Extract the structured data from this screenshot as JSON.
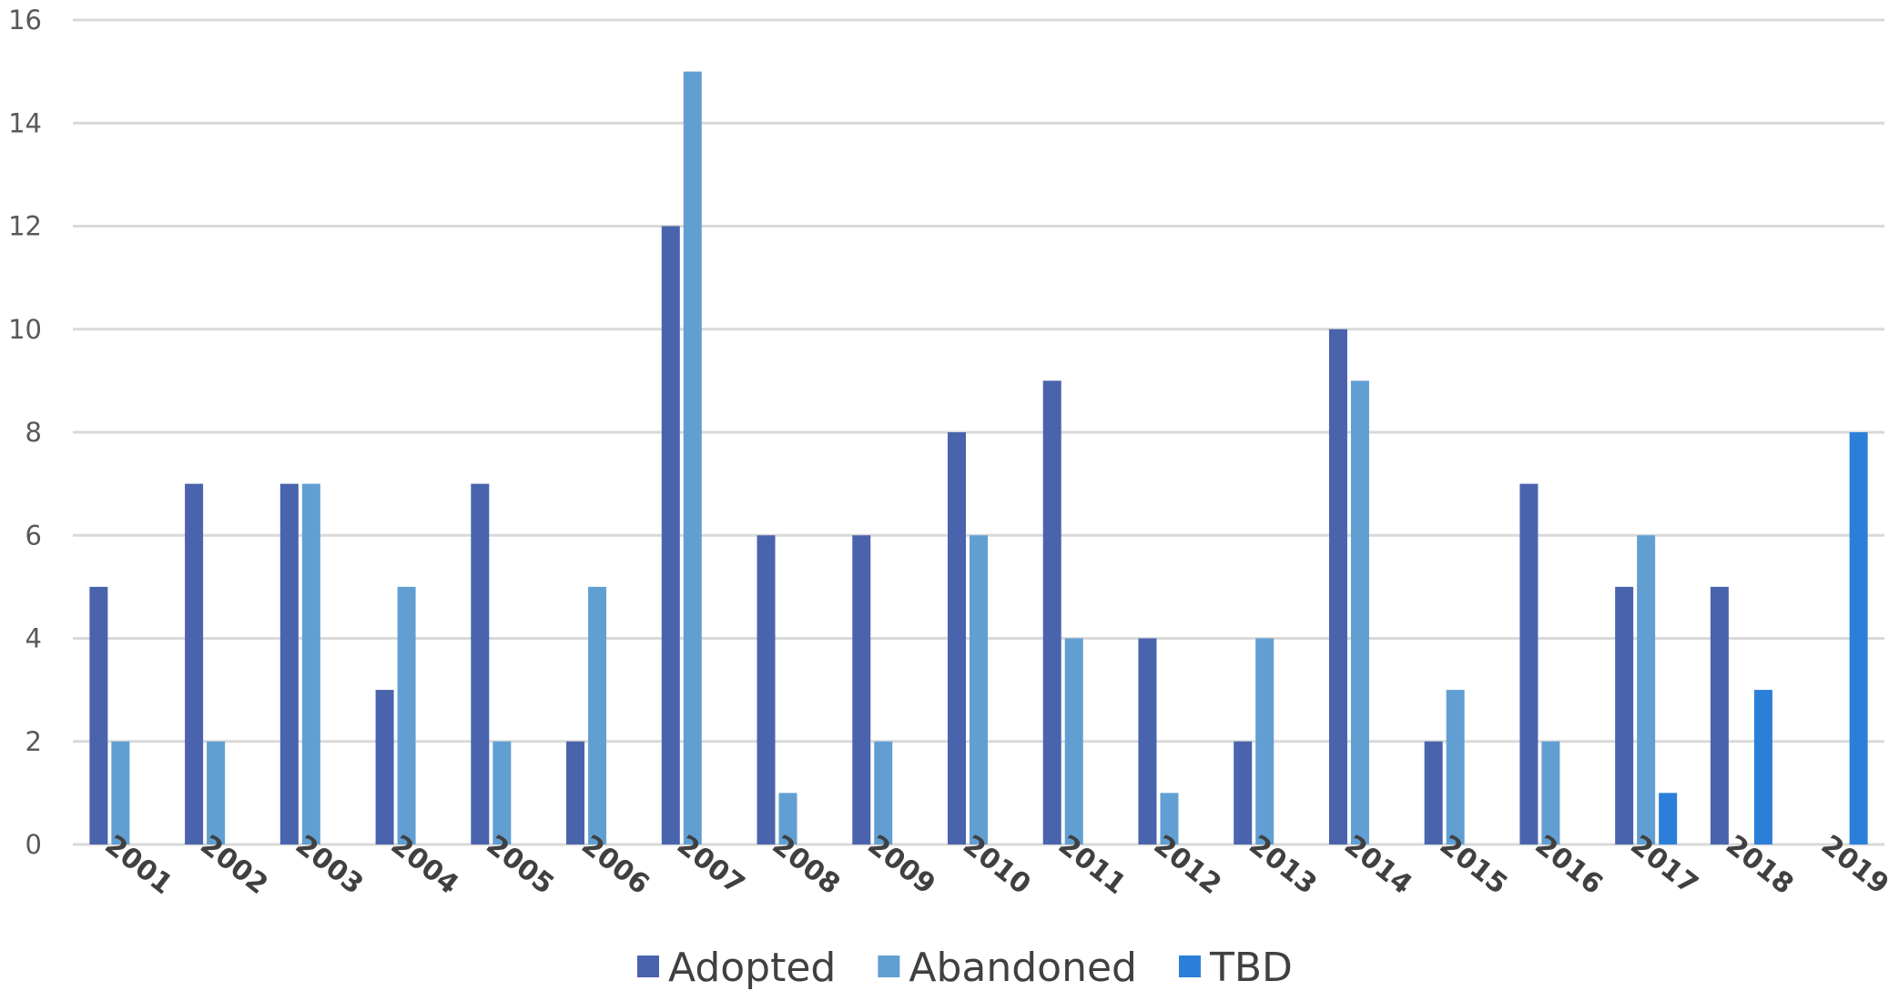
{
  "chart_data": {
    "type": "bar",
    "title": "",
    "xlabel": "",
    "ylabel": "",
    "ylim": [
      0,
      16
    ],
    "yticks": [
      0,
      2,
      4,
      6,
      8,
      10,
      12,
      14,
      16
    ],
    "grid": true,
    "legend_position": "bottom",
    "categories": [
      "2001",
      "2002",
      "2003",
      "2004",
      "2005",
      "2006",
      "2007",
      "2008",
      "2009",
      "2010",
      "2011",
      "2012",
      "2013",
      "2014",
      "2015",
      "2016",
      "2017",
      "2018",
      "2019"
    ],
    "series": [
      {
        "name": "Adopted",
        "color": "#4a63ad",
        "values": [
          5,
          7,
          7,
          3,
          7,
          2,
          12,
          6,
          6,
          8,
          9,
          4,
          2,
          10,
          2,
          7,
          5,
          5,
          0
        ]
      },
      {
        "name": "Abandoned",
        "color": "#619fd3",
        "values": [
          2,
          2,
          7,
          5,
          2,
          5,
          15,
          1,
          2,
          6,
          4,
          1,
          4,
          9,
          3,
          2,
          6,
          0,
          0
        ]
      },
      {
        "name": "TBD",
        "color": "#2b7fd8",
        "values": [
          0,
          0,
          0,
          0,
          0,
          0,
          0,
          0,
          0,
          0,
          0,
          0,
          0,
          0,
          0,
          0,
          1,
          3,
          8
        ]
      }
    ]
  }
}
